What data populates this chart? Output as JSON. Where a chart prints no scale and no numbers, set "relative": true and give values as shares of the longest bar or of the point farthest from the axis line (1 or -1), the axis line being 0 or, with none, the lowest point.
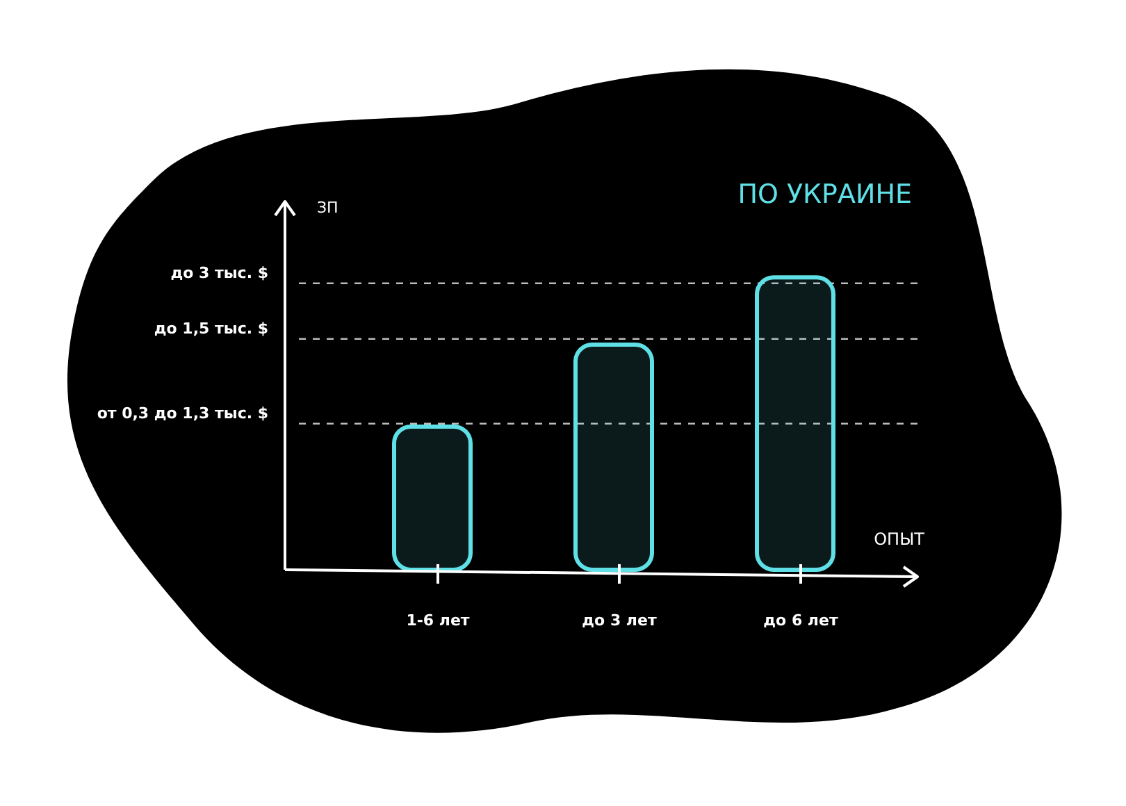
{
  "chart_data": {
    "type": "bar",
    "title": "ПО УКРАИНЕ",
    "xlabel": "ОПЫТ",
    "ylabel": "ЗП",
    "relative": true,
    "categories": [
      "1-6 лет",
      "до 3 лет",
      "до 6 лет"
    ],
    "values": [
      0.49,
      0.77,
      1
    ],
    "color": "#5ee0e6",
    "ref_lines": [
      {
        "axis": "y",
        "value": 0.5,
        "label": "от 0,3 до 1,3 тыс. $",
        "line_style": "dashed",
        "color": "#bbbbbb"
      },
      {
        "axis": "y",
        "value": 0.79,
        "label": "до 1,5 тыс. $",
        "line_style": "dashed",
        "color": "#bbbbbb"
      },
      {
        "axis": "y",
        "value": 0.98,
        "label": "до 3 тыс. $",
        "line_style": "dashed",
        "color": "#bbbbbb"
      }
    ]
  }
}
